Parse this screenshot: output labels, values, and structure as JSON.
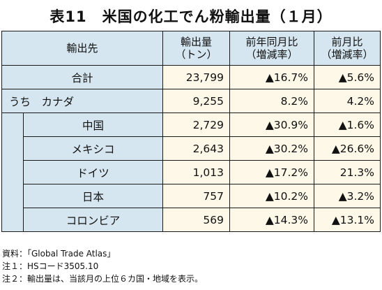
{
  "title": "表11　米国の化工でん粉輸出量（１月）",
  "headers": {
    "destination": "輸出先",
    "volume": [
      "輸出量",
      "（トン）"
    ],
    "yoy": [
      "前年同月比",
      "（増減率）"
    ],
    "mom": [
      "前月比",
      "（増減率）"
    ]
  },
  "rows": [
    {
      "name": "合計",
      "volume": "23,799",
      "yoy": "▲16.7%",
      "mom": "▲5.6%"
    },
    {
      "name": "うち　カナダ",
      "volume": "9,255",
      "yoy": "8.2%",
      "mom": "4.2%"
    },
    {
      "name": "中国",
      "volume": "2,729",
      "yoy": "▲30.9%",
      "mom": "▲1.6%"
    },
    {
      "name": "メキシコ",
      "volume": "2,643",
      "yoy": "▲30.2%",
      "mom": "▲26.6%"
    },
    {
      "name": "ドイツ",
      "volume": "1,013",
      "yoy": "▲17.2%",
      "mom": "21.3%"
    },
    {
      "name": "日本",
      "volume": "757",
      "yoy": "▲10.2%",
      "mom": "▲3.2%"
    },
    {
      "name": "コロンビア",
      "volume": "569",
      "yoy": "▲14.3%",
      "mom": "▲13.1%"
    }
  ],
  "notes": [
    "資料：「Global Trade Atlas」",
    "注１：HSコード3505.10",
    "注２：輸出量は、当該月の上位６カ国・地域を表示。"
  ],
  "colors": {
    "header_bg": "#d5e6f0",
    "value_bg": "#fdf8e7",
    "border": "#1a1a1a"
  }
}
